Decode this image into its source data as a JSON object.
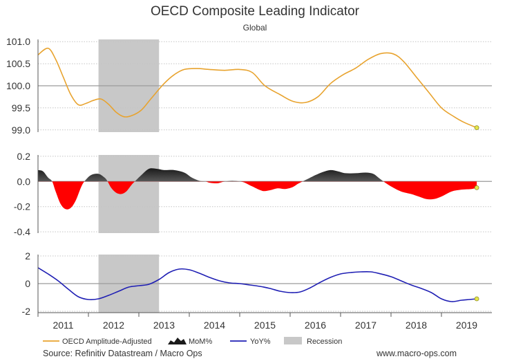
{
  "chart_data": {
    "title": "OECD Composite Leading Indicator",
    "subtitle": "Global",
    "colors": {
      "cli": "#e8a32e",
      "mom_pos": "#1a1a1a",
      "mom_neg": "#ff0000",
      "yoy": "#1f1fb4",
      "recession": "#c8c8c8",
      "marker": "#e6e64a"
    },
    "x_range": [
      2010.5,
      2019.5
    ],
    "x_ticks": [
      2011,
      2012,
      2013,
      2014,
      2015,
      2016,
      2017,
      2018,
      2019
    ],
    "x_tick_labels": [
      "2011",
      "2012",
      "2013",
      "2014",
      "2015",
      "2016",
      "2017",
      "2018",
      "2019"
    ],
    "recession": {
      "start": 2011.7,
      "end": 2012.9,
      "label": "Recession"
    },
    "panels": [
      {
        "id": "cli",
        "type": "line",
        "name": "OECD Amplitude-Adjusted",
        "ylim": [
          98.95,
          101.05
        ],
        "yticks": [
          99.0,
          99.5,
          100.0,
          100.5,
          101.0
        ],
        "ytick_labels": [
          "99.0",
          "99.5",
          "100.0",
          "100.5",
          "101.0"
        ],
        "reference": 100.0,
        "points": [
          [
            2010.5,
            100.7
          ],
          [
            2010.7,
            100.85
          ],
          [
            2010.85,
            100.6
          ],
          [
            2011.0,
            100.2
          ],
          [
            2011.15,
            99.8
          ],
          [
            2011.3,
            99.57
          ],
          [
            2011.45,
            99.6
          ],
          [
            2011.6,
            99.67
          ],
          [
            2011.75,
            99.7
          ],
          [
            2011.9,
            99.58
          ],
          [
            2012.05,
            99.4
          ],
          [
            2012.2,
            99.3
          ],
          [
            2012.35,
            99.32
          ],
          [
            2012.55,
            99.45
          ],
          [
            2012.75,
            99.72
          ],
          [
            2013.0,
            100.05
          ],
          [
            2013.2,
            100.25
          ],
          [
            2013.4,
            100.37
          ],
          [
            2013.65,
            100.39
          ],
          [
            2013.9,
            100.37
          ],
          [
            2014.2,
            100.35
          ],
          [
            2014.5,
            100.37
          ],
          [
            2014.75,
            100.3
          ],
          [
            2015.0,
            100.0
          ],
          [
            2015.3,
            99.8
          ],
          [
            2015.55,
            99.65
          ],
          [
            2015.8,
            99.62
          ],
          [
            2016.05,
            99.75
          ],
          [
            2016.3,
            100.05
          ],
          [
            2016.55,
            100.25
          ],
          [
            2016.8,
            100.4
          ],
          [
            2017.05,
            100.6
          ],
          [
            2017.3,
            100.73
          ],
          [
            2017.55,
            100.72
          ],
          [
            2017.75,
            100.55
          ],
          [
            2018.0,
            100.2
          ],
          [
            2018.25,
            99.85
          ],
          [
            2018.5,
            99.5
          ],
          [
            2018.75,
            99.3
          ],
          [
            2018.95,
            99.17
          ],
          [
            2019.2,
            99.05
          ]
        ],
        "end_marker": [
          2019.2,
          99.05
        ]
      },
      {
        "id": "mom",
        "type": "area",
        "name": "MoM%",
        "ylim": [
          -0.41,
          0.21
        ],
        "yticks": [
          -0.4,
          -0.2,
          0.0,
          0.2
        ],
        "ytick_labels": [
          "-0.4",
          "-0.2",
          "0.0",
          "0.2"
        ],
        "reference": 0.0,
        "points": [
          [
            2010.5,
            0.09
          ],
          [
            2010.6,
            0.08
          ],
          [
            2010.7,
            0.03
          ],
          [
            2010.78,
            0.0
          ],
          [
            2010.85,
            -0.08
          ],
          [
            2010.95,
            -0.18
          ],
          [
            2011.05,
            -0.22
          ],
          [
            2011.15,
            -0.21
          ],
          [
            2011.25,
            -0.15
          ],
          [
            2011.35,
            -0.05
          ],
          [
            2011.42,
            0.0
          ],
          [
            2011.55,
            0.05
          ],
          [
            2011.7,
            0.06
          ],
          [
            2011.82,
            0.03
          ],
          [
            2011.88,
            0.0
          ],
          [
            2011.95,
            -0.05
          ],
          [
            2012.05,
            -0.09
          ],
          [
            2012.15,
            -0.1
          ],
          [
            2012.25,
            -0.08
          ],
          [
            2012.35,
            -0.03
          ],
          [
            2012.42,
            0.0
          ],
          [
            2012.55,
            0.05
          ],
          [
            2012.7,
            0.1
          ],
          [
            2012.85,
            0.1
          ],
          [
            2013.0,
            0.09
          ],
          [
            2013.2,
            0.09
          ],
          [
            2013.4,
            0.07
          ],
          [
            2013.55,
            0.03
          ],
          [
            2013.7,
            0.005
          ],
          [
            2013.82,
            0.0
          ],
          [
            2013.9,
            -0.01
          ],
          [
            2014.05,
            -0.015
          ],
          [
            2014.15,
            -0.005
          ],
          [
            2014.22,
            0.0
          ],
          [
            2014.35,
            0.005
          ],
          [
            2014.5,
            0.0
          ],
          [
            2014.6,
            -0.01
          ],
          [
            2014.75,
            -0.04
          ],
          [
            2014.95,
            -0.075
          ],
          [
            2015.1,
            -0.07
          ],
          [
            2015.25,
            -0.055
          ],
          [
            2015.4,
            -0.06
          ],
          [
            2015.55,
            -0.045
          ],
          [
            2015.65,
            -0.02
          ],
          [
            2015.75,
            0.0
          ],
          [
            2015.85,
            0.02
          ],
          [
            2016.0,
            0.05
          ],
          [
            2016.15,
            0.075
          ],
          [
            2016.3,
            0.09
          ],
          [
            2016.45,
            0.08
          ],
          [
            2016.6,
            0.065
          ],
          [
            2016.8,
            0.065
          ],
          [
            2017.0,
            0.07
          ],
          [
            2017.15,
            0.06
          ],
          [
            2017.25,
            0.03
          ],
          [
            2017.35,
            0.0
          ],
          [
            2017.5,
            -0.04
          ],
          [
            2017.7,
            -0.08
          ],
          [
            2017.9,
            -0.1
          ],
          [
            2018.05,
            -0.12
          ],
          [
            2018.2,
            -0.14
          ],
          [
            2018.35,
            -0.14
          ],
          [
            2018.5,
            -0.12
          ],
          [
            2018.7,
            -0.08
          ],
          [
            2018.9,
            -0.065
          ],
          [
            2019.1,
            -0.06
          ],
          [
            2019.2,
            -0.05
          ]
        ],
        "end_marker": [
          2019.2,
          -0.05
        ]
      },
      {
        "id": "yoy",
        "type": "line",
        "name": "YoY%",
        "ylim": [
          -2.1,
          2.1
        ],
        "yticks": [
          -2,
          0,
          2
        ],
        "ytick_labels": [
          "-2",
          "0",
          "2"
        ],
        "reference": 0,
        "points": [
          [
            2010.5,
            1.15
          ],
          [
            2010.7,
            0.7
          ],
          [
            2010.9,
            0.2
          ],
          [
            2011.1,
            -0.4
          ],
          [
            2011.3,
            -0.95
          ],
          [
            2011.5,
            -1.15
          ],
          [
            2011.7,
            -1.1
          ],
          [
            2011.9,
            -0.85
          ],
          [
            2012.1,
            -0.55
          ],
          [
            2012.3,
            -0.25
          ],
          [
            2012.5,
            -0.15
          ],
          [
            2012.7,
            -0.05
          ],
          [
            2012.9,
            0.3
          ],
          [
            2013.1,
            0.8
          ],
          [
            2013.3,
            1.05
          ],
          [
            2013.5,
            1.0
          ],
          [
            2013.7,
            0.75
          ],
          [
            2013.9,
            0.45
          ],
          [
            2014.1,
            0.2
          ],
          [
            2014.3,
            0.05
          ],
          [
            2014.5,
            0.0
          ],
          [
            2014.7,
            -0.1
          ],
          [
            2014.9,
            -0.2
          ],
          [
            2015.1,
            -0.35
          ],
          [
            2015.3,
            -0.55
          ],
          [
            2015.5,
            -0.65
          ],
          [
            2015.7,
            -0.6
          ],
          [
            2015.9,
            -0.3
          ],
          [
            2016.1,
            0.1
          ],
          [
            2016.3,
            0.45
          ],
          [
            2016.5,
            0.7
          ],
          [
            2016.7,
            0.8
          ],
          [
            2016.9,
            0.85
          ],
          [
            2017.1,
            0.85
          ],
          [
            2017.3,
            0.7
          ],
          [
            2017.5,
            0.5
          ],
          [
            2017.7,
            0.2
          ],
          [
            2017.9,
            -0.1
          ],
          [
            2018.1,
            -0.35
          ],
          [
            2018.3,
            -0.65
          ],
          [
            2018.5,
            -1.1
          ],
          [
            2018.7,
            -1.3
          ],
          [
            2018.9,
            -1.2
          ],
          [
            2019.05,
            -1.15
          ],
          [
            2019.2,
            -1.1
          ]
        ],
        "end_marker": [
          2019.2,
          -1.1
        ]
      }
    ],
    "legend": [
      {
        "label": "OECD Amplitude-Adjusted",
        "kind": "line",
        "color": "#e8a32e"
      },
      {
        "label": "MoM%",
        "kind": "area",
        "color": "#1a1a1a"
      },
      {
        "label": "YoY%",
        "kind": "line",
        "color": "#1f1fb4"
      },
      {
        "label": "Recession",
        "kind": "box",
        "color": "#c8c8c8"
      }
    ]
  },
  "footer": {
    "source": "Source: Refinitiv Datastream / Macro Ops",
    "website": "www.macro-ops.com"
  }
}
